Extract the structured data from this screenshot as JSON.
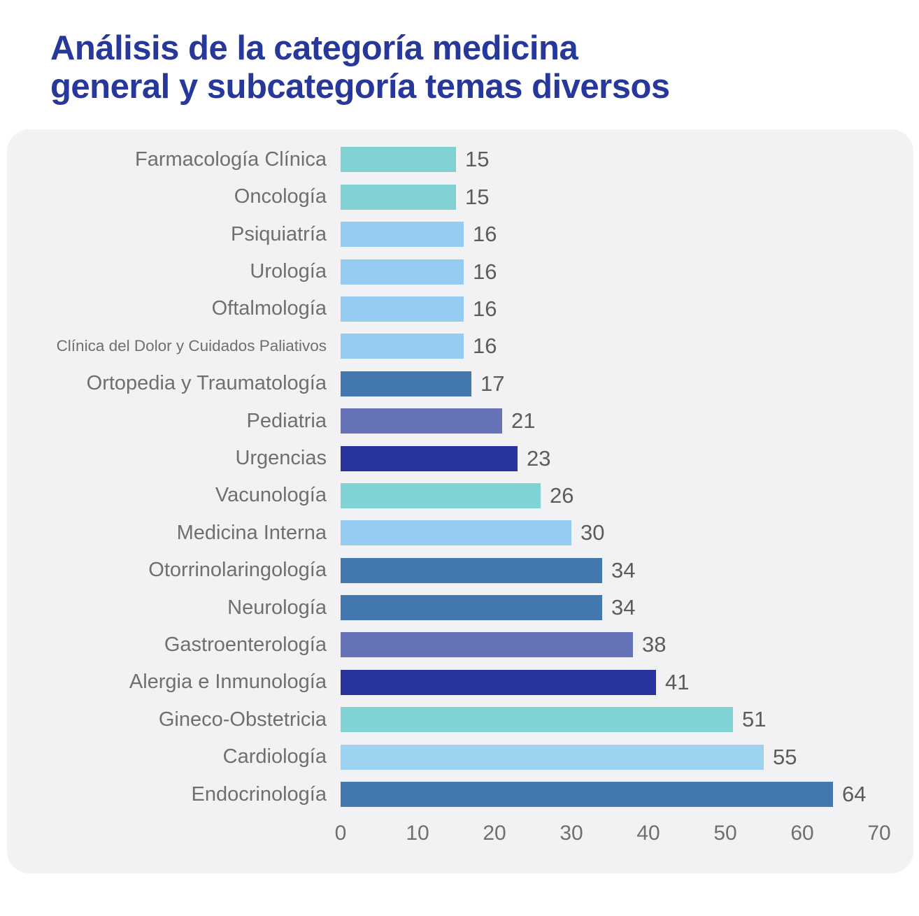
{
  "title": {
    "line1": "Análisis de la categoría medicina",
    "line2": "general y subcategoría temas diversos"
  },
  "colors": {
    "title_blue": "#27389A",
    "panel_background": "#F2F2F4",
    "label_gray": "#6F6F6F",
    "value_gray": "#5C5C5C",
    "teal": "#7FD2D1",
    "light_blue": "#95CCEF",
    "pale_blue": "#9DD2F1",
    "steel_blue": "#4277AF",
    "purple": "#6673B9",
    "navy": "#2A34A0"
  },
  "chart_data": {
    "type": "bar",
    "orientation": "horizontal",
    "title": "Análisis de la categoría medicina general y subcategoría temas diversos",
    "xlabel": "",
    "ylabel": "",
    "xlim": [
      0,
      70
    ],
    "x_ticks": [
      0,
      10,
      20,
      30,
      40,
      50,
      60,
      70
    ],
    "grid": false,
    "value_labels": true,
    "categories": [
      "Farmacología Clínica",
      "Oncología",
      "Psiquiatría",
      "Urología",
      "Oftalmología",
      "Clínica del Dolor y Cuidados Paliativos",
      "Ortopedia y Traumatología",
      "Pediatria",
      "Urgencias",
      "Vacunología",
      "Medicina Interna",
      "Otorrinolaringología",
      "Neurología",
      "Gastroenterología",
      "Alergia e Inmunología",
      "Gineco-Obstetricia",
      "Cardiología",
      "Endocrinología"
    ],
    "values": [
      15,
      15,
      16,
      16,
      16,
      16,
      17,
      21,
      23,
      26,
      30,
      34,
      34,
      38,
      41,
      51,
      55,
      64
    ],
    "bar_colors": [
      "#7FD2D1",
      "#7FD2D1",
      "#95CCEF",
      "#95CCEF",
      "#95CCEF",
      "#95CCEF",
      "#4277AF",
      "#6673B9",
      "#2A34A0",
      "#80D3D4",
      "#95CCEF",
      "#4277AF",
      "#4277AF",
      "#6673B9",
      "#2A34A0",
      "#80D3D4",
      "#9DD2F1",
      "#4277AF"
    ]
  }
}
